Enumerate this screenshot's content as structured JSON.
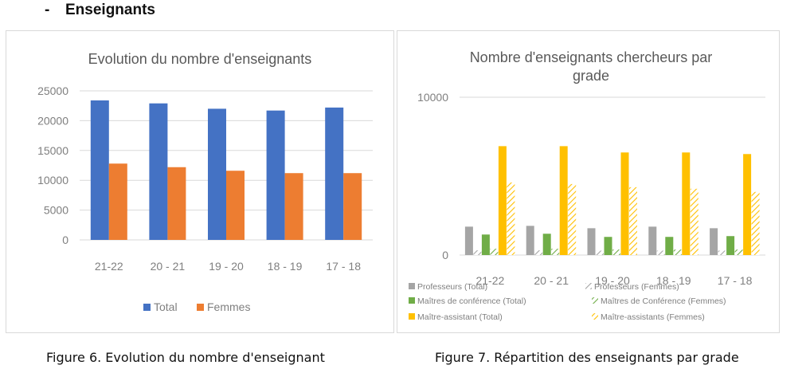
{
  "heading": {
    "bullet": "-",
    "text": "Enseignants"
  },
  "captions": {
    "fig6": "Figure 6. Evolution du nombre d'enseignant",
    "fig7": "Figure 7. Répartition des enseignants par grade"
  },
  "colors": {
    "total": "#4472C4",
    "femmes": "#ED7D31",
    "prof": "#A5A5A5",
    "mc": "#70AD47",
    "ma": "#FFC000",
    "grid": "#d9d9d9",
    "axis_text": "#7f7f7f"
  },
  "chart_data": [
    {
      "type": "bar",
      "title": "Evolution du nombre d'enseignants",
      "categories": [
        "21-22",
        "20 - 21",
        "19 - 20",
        "18 - 19",
        "17 - 18"
      ],
      "series": [
        {
          "name": "Total",
          "values": [
            23400,
            22900,
            22000,
            21700,
            22200
          ]
        },
        {
          "name": "Femmes",
          "values": [
            12800,
            12200,
            11600,
            11200,
            11200
          ]
        }
      ],
      "yticks": [
        0,
        5000,
        10000,
        15000,
        20000,
        25000
      ],
      "ylim": [
        0,
        25000
      ],
      "grid": true,
      "legend": "bottom"
    },
    {
      "type": "bar",
      "title": "Nombre d'enseignants chercheurs par grade",
      "categories": [
        "21-22",
        "20 - 21",
        "19 - 20",
        "18 - 19",
        "17 - 18"
      ],
      "series": [
        {
          "name": "Professeurs (Total)",
          "values": [
            1800,
            1850,
            1700,
            1800,
            1700
          ]
        },
        {
          "name": "Professeurs (Femmes)",
          "values": [
            300,
            300,
            280,
            280,
            280
          ]
        },
        {
          "name": "Maîtres de conférence (Total)",
          "values": [
            1300,
            1350,
            1150,
            1150,
            1200
          ]
        },
        {
          "name": "Maîtres de Conférence (Femmes)",
          "values": [
            400,
            400,
            350,
            350,
            350
          ]
        },
        {
          "name": "Maître-assistant (Total)",
          "values": [
            6900,
            6900,
            6500,
            6500,
            6400
          ]
        },
        {
          "name": "Maître-assistants (Femmes)",
          "values": [
            4600,
            4500,
            4300,
            4200,
            4000
          ]
        }
      ],
      "yticks": [
        0,
        10000
      ],
      "ylim": [
        0,
        10000
      ],
      "grid": true,
      "legend": "bottom"
    }
  ]
}
